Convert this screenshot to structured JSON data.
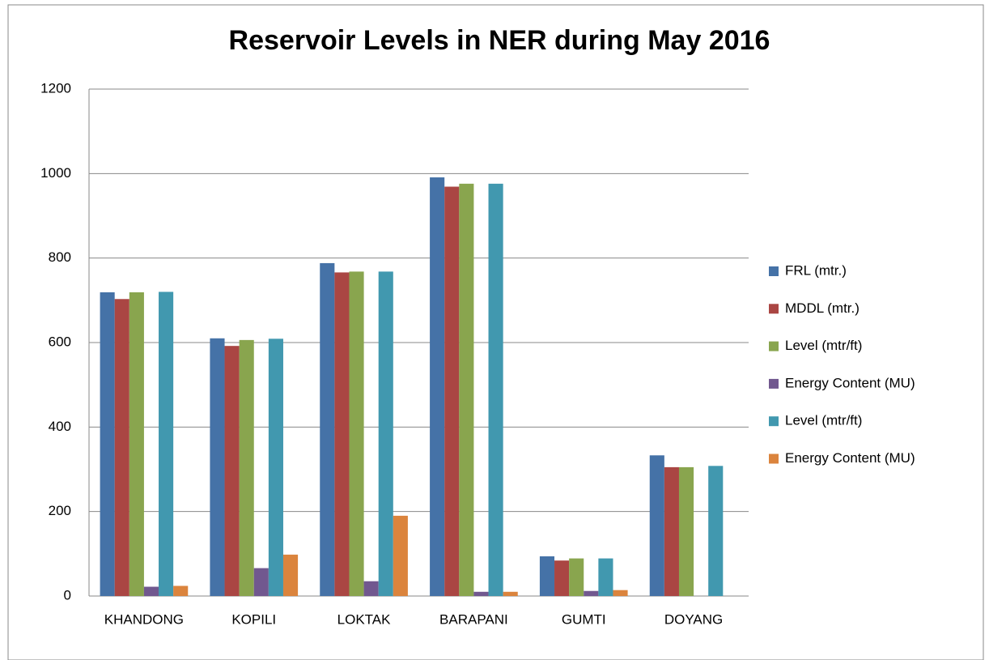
{
  "chart_data": {
    "type": "bar",
    "title": "Reservoir Levels in NER during May 2016",
    "categories": [
      "KHANDONG",
      "KOPILI",
      "LOKTAK",
      "BARAPANI",
      "GUMTI",
      "DOYANG"
    ],
    "series": [
      {
        "name": "FRL (mtr.)",
        "color": "#4572a7",
        "values": [
          719,
          610,
          788,
          991,
          94,
          333
        ]
      },
      {
        "name": "MDDL (mtr.)",
        "color": "#aa4643",
        "values": [
          703,
          592,
          766,
          969,
          84,
          305
        ]
      },
      {
        "name": "Level (mtr/ft)",
        "color": "#89a54e",
        "values": [
          719,
          606,
          768,
          976,
          89,
          305
        ]
      },
      {
        "name": "Energy Content (MU)",
        "color": "#71588f",
        "values": [
          22,
          66,
          35,
          10,
          12,
          null
        ]
      },
      {
        "name": "Level (mtr/ft)",
        "color": "#4198af",
        "values": [
          720,
          609,
          768,
          976,
          89,
          308
        ]
      },
      {
        "name": "Energy Content (MU)",
        "color": "#db843d",
        "values": [
          24,
          98,
          190,
          10,
          14,
          null
        ]
      }
    ],
    "ylim": [
      0,
      1200
    ],
    "yticks": [
      0,
      200,
      400,
      600,
      800,
      1000,
      1200
    ],
    "grid": true,
    "legend": "right"
  }
}
